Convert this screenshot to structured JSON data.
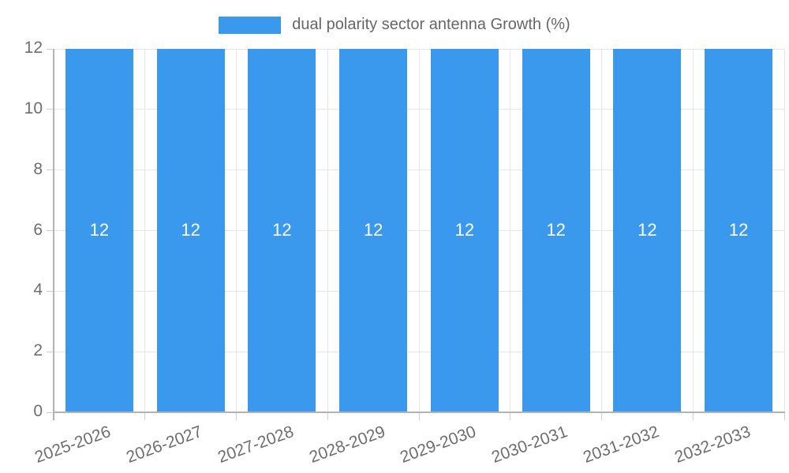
{
  "chart_data": {
    "type": "bar",
    "title": "",
    "xlabel": "",
    "ylabel": "",
    "categories": [
      "2025-2026",
      "2026-2027",
      "2027-2028",
      "2028-2029",
      "2029-2030",
      "2030-2031",
      "2031-2032",
      "2032-2033"
    ],
    "series": [
      {
        "name": "dual polarity sector antenna Growth (%)",
        "values": [
          12,
          12,
          12,
          12,
          12,
          12,
          12,
          12
        ]
      }
    ],
    "bar_value_labels": [
      "12",
      "12",
      "12",
      "12",
      "12",
      "12",
      "12",
      "12"
    ],
    "ylim": [
      0,
      12
    ],
    "yticks": [
      0,
      2,
      4,
      6,
      8,
      10,
      12
    ],
    "grid": true,
    "legend_position": "top",
    "colors": {
      "bar": "#3a99ec",
      "bar_label": "#ffffff",
      "grid": "#e6e6e6",
      "axis_line": "#b3b3b3",
      "tick_mark": "#cfcfcf",
      "tick_text": "#6e6e6e",
      "legend_text": "#666666"
    }
  }
}
